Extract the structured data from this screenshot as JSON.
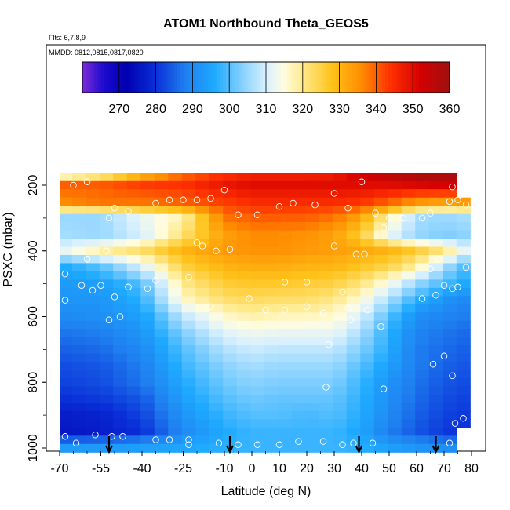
{
  "chart_data": {
    "type": "heatmap",
    "title": "ATOM1 Northbound Theta_GEOS5",
    "subtitle_flights": "Flts: 6,7,8,9",
    "subtitle_dates": "MMDD: 0812,0815,0817,0820",
    "xlabel": "Latitude (deg N)",
    "ylabel": "PSXC (mbar)",
    "xlim": [
      -70,
      80
    ],
    "ylim": [
      1000,
      150
    ],
    "x_ticks": [
      -70,
      -55,
      -40,
      -25,
      -10,
      0,
      10,
      20,
      30,
      40,
      50,
      60,
      70,
      80
    ],
    "x_tick_labels": [
      "-70",
      "-55",
      "-40",
      "-25",
      "-10",
      "0",
      "10",
      "20",
      "30",
      "40",
      "50",
      "60",
      "70",
      "80"
    ],
    "y_ticks": [
      200,
      400,
      600,
      800,
      1000
    ],
    "y_tick_labels": [
      "200",
      "400",
      "600",
      "800",
      "1000"
    ],
    "colorbar": {
      "min": 260,
      "max": 360,
      "ticks": [
        270,
        280,
        290,
        300,
        310,
        320,
        330,
        340,
        350,
        360
      ],
      "tick_labels": [
        "270",
        "280",
        "290",
        "300",
        "310",
        "320",
        "330",
        "340",
        "350",
        "360"
      ],
      "stops": [
        {
          "v": 260,
          "c": "#7b2bd9"
        },
        {
          "v": 266,
          "c": "#1a0acd"
        },
        {
          "v": 272,
          "c": "#0000b0"
        },
        {
          "v": 280,
          "c": "#0a2fd8"
        },
        {
          "v": 288,
          "c": "#1f7ff0"
        },
        {
          "v": 296,
          "c": "#1eaaff"
        },
        {
          "v": 304,
          "c": "#8cd3ff"
        },
        {
          "v": 310,
          "c": "#d8f0ff"
        },
        {
          "v": 315,
          "c": "#fffde0"
        },
        {
          "v": 320,
          "c": "#ffe98a"
        },
        {
          "v": 328,
          "c": "#ffc21a"
        },
        {
          "v": 336,
          "c": "#ff8c00"
        },
        {
          "v": 344,
          "c": "#ff3000"
        },
        {
          "v": 352,
          "c": "#d50000"
        },
        {
          "v": 360,
          "c": "#9e1010"
        }
      ]
    },
    "grid": false,
    "y_levels": [
      175,
      200,
      225,
      250,
      275,
      300,
      325,
      350,
      375,
      400,
      425,
      450,
      475,
      500,
      525,
      550,
      575,
      600,
      625,
      650,
      675,
      700,
      725,
      750,
      775,
      800,
      825,
      850,
      875,
      900,
      925,
      950,
      975,
      1000
    ],
    "x_columns": [
      -68,
      -63,
      -58,
      -53,
      -48,
      -43,
      -38,
      -33,
      -28,
      -23,
      -18,
      -13,
      -8,
      -3,
      2,
      7,
      12,
      17,
      22,
      27,
      32,
      37,
      42,
      47,
      52,
      57,
      62,
      67,
      72,
      77
    ],
    "profile_lat": [
      -68,
      -55,
      -40,
      -25,
      -10,
      0,
      10,
      20,
      30,
      40,
      50,
      60,
      70,
      77
    ],
    "profile_pressure": [
      175,
      200,
      250,
      300,
      350,
      400,
      450,
      500,
      550,
      600,
      650,
      700,
      750,
      800,
      850,
      900,
      950,
      1000
    ],
    "theta_profiles": [
      [
        318,
        340,
        336,
        305,
        306,
        312,
        296,
        293,
        292,
        290,
        287,
        285,
        283,
        282,
        280,
        277,
        276,
        293
      ],
      [
        322,
        340,
        338,
        305,
        305,
        318,
        300,
        294,
        292,
        291,
        288,
        286,
        284,
        283,
        281,
        278,
        277,
        293
      ],
      [
        332,
        343,
        338,
        312,
        310,
        322,
        310,
        300,
        297,
        294,
        292,
        290,
        288,
        287,
        284,
        282,
        280,
        294
      ],
      [
        340,
        344,
        340,
        318,
        322,
        330,
        325,
        320,
        316,
        308,
        303,
        300,
        298,
        296,
        294,
        292,
        290,
        295
      ],
      [
        345,
        348,
        343,
        338,
        333,
        334,
        330,
        326,
        322,
        316,
        311,
        307,
        304,
        302,
        300,
        298,
        296,
        297
      ],
      [
        347,
        350,
        345,
        340,
        336,
        335,
        331,
        327,
        323,
        318,
        313,
        309,
        306,
        304,
        302,
        300,
        298,
        298
      ],
      [
        347,
        350,
        345,
        340,
        336,
        335,
        331,
        327,
        322,
        317,
        312,
        308,
        305,
        303,
        301,
        300,
        298,
        298
      ],
      [
        347,
        350,
        345,
        340,
        335,
        334,
        330,
        326,
        322,
        317,
        312,
        308,
        305,
        303,
        301,
        299,
        298,
        298
      ],
      [
        348,
        350,
        345,
        338,
        333,
        333,
        330,
        325,
        320,
        316,
        312,
        308,
        305,
        303,
        301,
        300,
        298,
        298
      ],
      [
        352,
        350,
        344,
        332,
        326,
        332,
        327,
        321,
        315,
        310,
        306,
        303,
        300,
        298,
        297,
        296,
        295,
        297
      ],
      [
        355,
        350,
        340,
        318,
        312,
        330,
        324,
        314,
        306,
        300,
        297,
        296,
        294,
        292,
        291,
        290,
        288,
        294
      ],
      [
        357,
        351,
        335,
        306,
        305,
        326,
        318,
        305,
        297,
        291,
        289,
        288,
        288,
        287,
        286,
        285,
        284,
        292
      ],
      [
        358,
        352,
        333,
        305,
        303,
        320,
        306,
        299,
        292,
        289,
        287,
        286,
        285,
        284,
        283,
        282,
        281,
        291
      ],
      [
        358,
        352,
        334,
        306,
        304,
        312,
        300,
        296,
        290,
        288,
        286,
        285,
        284,
        283,
        282,
        281,
        280,
        290
      ]
    ],
    "observations": [
      {
        "lat": -65,
        "p": 200
      },
      {
        "lat": -60,
        "p": 190
      },
      {
        "lat": -52,
        "p": 300
      },
      {
        "lat": -50,
        "p": 270
      },
      {
        "lat": -45,
        "p": 280
      },
      {
        "lat": -53,
        "p": 400
      },
      {
        "lat": -60,
        "p": 425
      },
      {
        "lat": -68,
        "p": 470
      },
      {
        "lat": -62,
        "p": 505
      },
      {
        "lat": -58,
        "p": 520
      },
      {
        "lat": -55,
        "p": 505
      },
      {
        "lat": -50,
        "p": 540
      },
      {
        "lat": -45,
        "p": 510
      },
      {
        "lat": -68,
        "p": 550
      },
      {
        "lat": -52,
        "p": 610
      },
      {
        "lat": -48,
        "p": 600
      },
      {
        "lat": -30,
        "p": 245
      },
      {
        "lat": -35,
        "p": 255
      },
      {
        "lat": -25,
        "p": 245
      },
      {
        "lat": -20,
        "p": 245
      },
      {
        "lat": -15,
        "p": 240
      },
      {
        "lat": -10,
        "p": 215
      },
      {
        "lat": -5,
        "p": 290
      },
      {
        "lat": 2,
        "p": 290
      },
      {
        "lat": 10,
        "p": 265
      },
      {
        "lat": 15,
        "p": 255
      },
      {
        "lat": 23,
        "p": 260
      },
      {
        "lat": 30,
        "p": 225
      },
      {
        "lat": 35,
        "p": 270
      },
      {
        "lat": 40,
        "p": 190
      },
      {
        "lat": 45,
        "p": 285
      },
      {
        "lat": 50,
        "p": 300
      },
      {
        "lat": 55,
        "p": 300
      },
      {
        "lat": 62,
        "p": 300
      },
      {
        "lat": 65,
        "p": 285
      },
      {
        "lat": 72,
        "p": 250
      },
      {
        "lat": 75,
        "p": 245
      },
      {
        "lat": 78,
        "p": 260
      },
      {
        "lat": 73,
        "p": 205
      },
      {
        "lat": 48,
        "p": 330
      },
      {
        "lat": -20,
        "p": 375
      },
      {
        "lat": -18,
        "p": 385
      },
      {
        "lat": -13,
        "p": 400
      },
      {
        "lat": -8,
        "p": 395
      },
      {
        "lat": 30,
        "p": 385
      },
      {
        "lat": 38,
        "p": 410
      },
      {
        "lat": 41,
        "p": 410
      },
      {
        "lat": 68,
        "p": 425
      },
      {
        "lat": 78,
        "p": 450
      },
      {
        "lat": 65,
        "p": 455
      },
      {
        "lat": -35,
        "p": 490
      },
      {
        "lat": -38,
        "p": 515
      },
      {
        "lat": -23,
        "p": 480
      },
      {
        "lat": 12,
        "p": 495
      },
      {
        "lat": 20,
        "p": 495
      },
      {
        "lat": 33,
        "p": 525
      },
      {
        "lat": 70,
        "p": 505
      },
      {
        "lat": 73,
        "p": 515
      },
      {
        "lat": 75,
        "p": 510
      },
      {
        "lat": 62,
        "p": 545
      },
      {
        "lat": 67,
        "p": 535
      },
      {
        "lat": -15,
        "p": 570
      },
      {
        "lat": -1,
        "p": 545
      },
      {
        "lat": 5,
        "p": 580
      },
      {
        "lat": 12,
        "p": 580
      },
      {
        "lat": 20,
        "p": 570
      },
      {
        "lat": 26,
        "p": 590
      },
      {
        "lat": 35,
        "p": 575
      },
      {
        "lat": 42,
        "p": 580
      },
      {
        "lat": 36,
        "p": 610
      },
      {
        "lat": 47,
        "p": 630
      },
      {
        "lat": 28,
        "p": 685
      },
      {
        "lat": 66,
        "p": 745
      },
      {
        "lat": 70,
        "p": 720
      },
      {
        "lat": 73,
        "p": 780
      },
      {
        "lat": 48,
        "p": 820
      },
      {
        "lat": 27,
        "p": 815
      },
      {
        "lat": 77,
        "p": 910
      },
      {
        "lat": 74,
        "p": 925
      },
      {
        "lat": -68,
        "p": 965
      },
      {
        "lat": -64,
        "p": 985
      },
      {
        "lat": -57,
        "p": 960
      },
      {
        "lat": -51,
        "p": 965
      },
      {
        "lat": -47,
        "p": 965
      },
      {
        "lat": -35,
        "p": 975
      },
      {
        "lat": -23,
        "p": 975
      },
      {
        "lat": -23,
        "p": 990
      },
      {
        "lat": -30,
        "p": 975
      },
      {
        "lat": -12,
        "p": 985
      },
      {
        "lat": -5,
        "p": 990
      },
      {
        "lat": 2,
        "p": 990
      },
      {
        "lat": 10,
        "p": 990
      },
      {
        "lat": 17,
        "p": 980
      },
      {
        "lat": 26,
        "p": 980
      },
      {
        "lat": 33,
        "p": 990
      },
      {
        "lat": 37,
        "p": 985
      },
      {
        "lat": 44,
        "p": 985
      },
      {
        "lat": 72,
        "p": 985
      }
    ],
    "flight_markers_lat": [
      -52,
      -8,
      39,
      67
    ]
  }
}
